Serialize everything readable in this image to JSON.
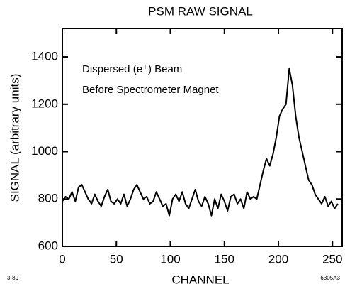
{
  "chart_data": {
    "type": "line",
    "title": "PSM RAW SIGNAL",
    "xlabel": "CHANNEL",
    "ylabel": "SIGNAL (arbitrary units)",
    "annotations": [
      "Dispersed  (e⁺) Beam",
      "Before Spectrometer Magnet"
    ],
    "notes": [
      "3-89",
      "6305A3"
    ],
    "color": "#000000",
    "x": [
      0,
      3,
      6,
      9,
      12,
      15,
      18,
      21,
      24,
      27,
      30,
      33,
      36,
      39,
      42,
      45,
      48,
      51,
      54,
      57,
      60,
      63,
      66,
      69,
      72,
      75,
      78,
      81,
      84,
      87,
      90,
      93,
      96,
      99,
      102,
      105,
      108,
      111,
      114,
      117,
      120,
      123,
      126,
      129,
      132,
      135,
      138,
      141,
      144,
      147,
      150,
      153,
      156,
      159,
      162,
      165,
      168,
      171,
      174,
      177,
      180,
      183,
      186,
      189,
      192,
      195,
      198,
      201,
      204,
      207,
      210,
      213,
      216,
      219,
      222,
      225,
      228,
      231,
      234,
      237,
      240,
      243,
      246,
      249,
      252,
      255
    ],
    "values": [
      790,
      810,
      800,
      830,
      790,
      850,
      860,
      830,
      800,
      780,
      820,
      790,
      770,
      810,
      840,
      790,
      780,
      800,
      780,
      820,
      770,
      800,
      840,
      860,
      830,
      800,
      810,
      780,
      790,
      830,
      800,
      770,
      780,
      730,
      800,
      820,
      790,
      830,
      780,
      760,
      800,
      840,
      790,
      770,
      810,
      780,
      730,
      800,
      760,
      820,
      790,
      750,
      810,
      820,
      780,
      800,
      760,
      830,
      800,
      810,
      800,
      860,
      920,
      970,
      940,
      990,
      1060,
      1150,
      1180,
      1200,
      1350,
      1280,
      1150,
      1060,
      1000,
      940,
      880,
      860,
      820,
      800,
      780,
      810,
      770,
      790,
      760,
      780
    ],
    "xlim": [
      0,
      259
    ],
    "ylim": [
      600,
      1520
    ],
    "xticks": [
      0,
      50,
      100,
      150,
      200,
      250
    ],
    "yticks": [
      600,
      800,
      1000,
      1200,
      1400
    ]
  }
}
